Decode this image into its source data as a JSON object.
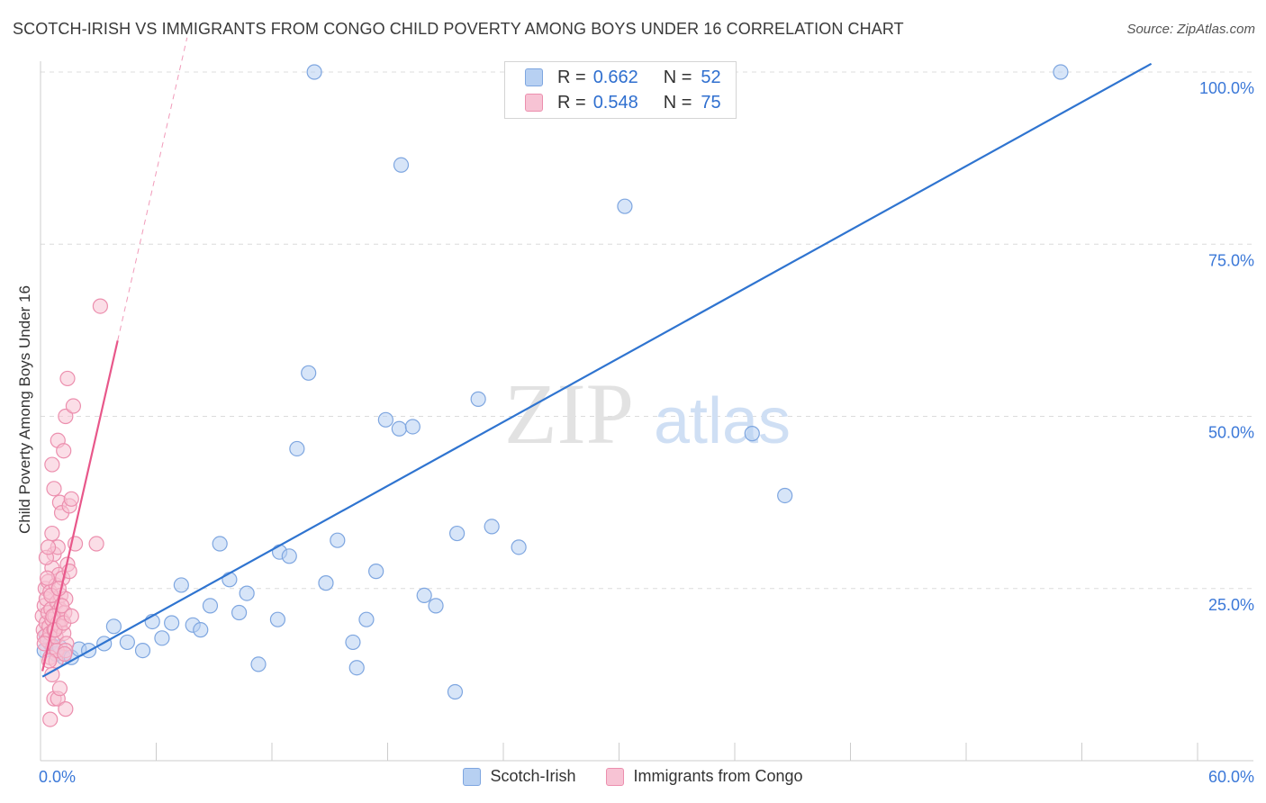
{
  "title": "SCOTCH-IRISH VS IMMIGRANTS FROM CONGO CHILD POVERTY AMONG BOYS UNDER 16 CORRELATION CHART",
  "source": "Source: ZipAtlas.com",
  "watermark": {
    "zip": "ZIP",
    "atlas": "atlas"
  },
  "colors": {
    "blue_fill": "#b7d0f2",
    "blue_stroke": "#7ea6e0",
    "blue_line": "#2f74d0",
    "pink_fill": "#f7c3d4",
    "pink_stroke": "#ec8fae",
    "pink_line": "#e8578a",
    "value_text": "#3b78d8",
    "grid": "#dcdcdc"
  },
  "stats_legend": [
    {
      "r_label": "R =",
      "r_value": "0.662",
      "n_label": "N =",
      "n_value": "52"
    },
    {
      "r_label": "R =",
      "r_value": "0.548",
      "n_label": "N =",
      "n_value": "75"
    }
  ],
  "chart_data": {
    "type": "scatter",
    "title": "SCOTCH-IRISH VS IMMIGRANTS FROM CONGO CHILD POVERTY AMONG BOYS UNDER 16 CORRELATION CHART",
    "xlabel": "",
    "ylabel": "Child Poverty Among Boys Under 16",
    "xlim": [
      0,
      60
    ],
    "ylim": [
      0,
      100
    ],
    "x_tick_labels": [
      {
        "value": 0,
        "label": "0.0%"
      },
      {
        "value": 60,
        "label": "60.0%"
      }
    ],
    "y_tick_labels": [
      {
        "value": 25,
        "label": "25.0%"
      },
      {
        "value": 50,
        "label": "50.0%"
      },
      {
        "value": 75,
        "label": "75.0%"
      },
      {
        "value": 100,
        "label": "100.0%"
      }
    ],
    "legend_position": "bottom",
    "series": [
      {
        "name": "Scotch-Irish",
        "color": "#b7d0f2",
        "r": 0.662,
        "n": 52,
        "trend": {
          "x0": 0.1,
          "y0": 12.2,
          "x1": 57.6,
          "y1": 101.2,
          "dashed_x0": null
        },
        "points": [
          [
            0.3,
            18.2
          ],
          [
            0.5,
            17.0
          ],
          [
            0.8,
            15.5
          ],
          [
            1.0,
            16.5
          ],
          [
            1.2,
            15.0
          ],
          [
            1.6,
            15.0
          ],
          [
            2.0,
            16.2
          ],
          [
            2.5,
            16.0
          ],
          [
            3.3,
            17.0
          ],
          [
            3.8,
            19.5
          ],
          [
            4.5,
            17.2
          ],
          [
            5.3,
            16.0
          ],
          [
            5.8,
            20.2
          ],
          [
            6.3,
            17.8
          ],
          [
            6.8,
            20.0
          ],
          [
            7.3,
            25.5
          ],
          [
            7.9,
            19.7
          ],
          [
            8.3,
            19.0
          ],
          [
            8.8,
            22.5
          ],
          [
            9.3,
            31.5
          ],
          [
            9.8,
            26.3
          ],
          [
            10.3,
            21.5
          ],
          [
            10.7,
            24.3
          ],
          [
            11.3,
            14.0
          ],
          [
            12.3,
            20.5
          ],
          [
            12.4,
            30.3
          ],
          [
            12.9,
            29.7
          ],
          [
            13.3,
            45.3
          ],
          [
            13.9,
            56.3
          ],
          [
            14.2,
            100.0
          ],
          [
            14.8,
            25.8
          ],
          [
            15.4,
            32.0
          ],
          [
            16.2,
            17.2
          ],
          [
            16.4,
            13.5
          ],
          [
            16.9,
            20.5
          ],
          [
            17.4,
            27.5
          ],
          [
            17.9,
            49.5
          ],
          [
            18.6,
            48.2
          ],
          [
            18.7,
            86.5
          ],
          [
            19.3,
            48.5
          ],
          [
            19.9,
            24.0
          ],
          [
            20.5,
            22.5
          ],
          [
            21.5,
            10.0
          ],
          [
            21.6,
            33.0
          ],
          [
            22.7,
            52.5
          ],
          [
            23.4,
            34.0
          ],
          [
            24.8,
            31.0
          ],
          [
            30.3,
            80.5
          ],
          [
            36.9,
            47.5
          ],
          [
            38.6,
            38.5
          ],
          [
            52.9,
            100.0
          ],
          [
            0.2,
            16.0
          ]
        ]
      },
      {
        "name": "Immigrants from Congo",
        "color": "#f7c3d4",
        "r": 0.548,
        "n": 75,
        "trend": {
          "x0": 0.1,
          "y0": 13.0,
          "x1": 4.0,
          "y1": 61.0,
          "dashed_x1": 7.6,
          "dashed_y1": 105.0
        },
        "points": [
          [
            0.1,
            21.0
          ],
          [
            0.15,
            19.0
          ],
          [
            0.2,
            22.5
          ],
          [
            0.2,
            18.0
          ],
          [
            0.25,
            25.0
          ],
          [
            0.3,
            20.0
          ],
          [
            0.3,
            23.5
          ],
          [
            0.35,
            17.5
          ],
          [
            0.4,
            21.5
          ],
          [
            0.4,
            26.0
          ],
          [
            0.45,
            19.5
          ],
          [
            0.5,
            24.5
          ],
          [
            0.5,
            18.5
          ],
          [
            0.55,
            22.0
          ],
          [
            0.6,
            20.5
          ],
          [
            0.6,
            28.0
          ],
          [
            0.65,
            16.5
          ],
          [
            0.7,
            30.0
          ],
          [
            0.7,
            19.0
          ],
          [
            0.75,
            21.0
          ],
          [
            0.8,
            25.5
          ],
          [
            0.8,
            18.0
          ],
          [
            0.85,
            23.0
          ],
          [
            0.9,
            20.0
          ],
          [
            0.9,
            31.0
          ],
          [
            0.95,
            27.0
          ],
          [
            1.0,
            19.5
          ],
          [
            1.0,
            22.0
          ],
          [
            1.05,
            24.0
          ],
          [
            1.1,
            20.5
          ],
          [
            1.15,
            26.5
          ],
          [
            1.2,
            18.5
          ],
          [
            1.25,
            21.5
          ],
          [
            1.3,
            23.5
          ],
          [
            1.35,
            17.0
          ],
          [
            1.4,
            28.5
          ],
          [
            0.6,
            43.0
          ],
          [
            0.7,
            39.5
          ],
          [
            0.9,
            46.5
          ],
          [
            1.0,
            37.5
          ],
          [
            1.1,
            36.0
          ],
          [
            1.2,
            45.0
          ],
          [
            1.3,
            50.0
          ],
          [
            1.4,
            55.5
          ],
          [
            1.5,
            37.0
          ],
          [
            1.6,
            38.0
          ],
          [
            1.7,
            51.5
          ],
          [
            1.8,
            31.5
          ],
          [
            2.9,
            31.5
          ],
          [
            3.1,
            66.0
          ],
          [
            0.5,
            6.0
          ],
          [
            0.6,
            12.5
          ],
          [
            0.7,
            9.0
          ],
          [
            0.9,
            9.0
          ],
          [
            1.0,
            10.5
          ],
          [
            1.3,
            7.5
          ],
          [
            0.5,
            15.0
          ],
          [
            0.8,
            14.5
          ],
          [
            0.3,
            29.5
          ],
          [
            0.4,
            31.0
          ],
          [
            0.2,
            17.0
          ],
          [
            0.35,
            26.5
          ],
          [
            0.55,
            24.0
          ],
          [
            0.65,
            21.0
          ],
          [
            0.75,
            19.0
          ],
          [
            0.85,
            16.0
          ],
          [
            0.95,
            25.0
          ],
          [
            1.1,
            22.5
          ],
          [
            1.2,
            20.0
          ],
          [
            1.3,
            16.0
          ],
          [
            0.45,
            14.5
          ],
          [
            0.6,
            33.0
          ],
          [
            1.5,
            27.5
          ],
          [
            1.6,
            21.0
          ],
          [
            1.25,
            15.5
          ]
        ]
      }
    ]
  },
  "legend_bottom": [
    "Scotch-Irish",
    "Immigrants from Congo"
  ]
}
